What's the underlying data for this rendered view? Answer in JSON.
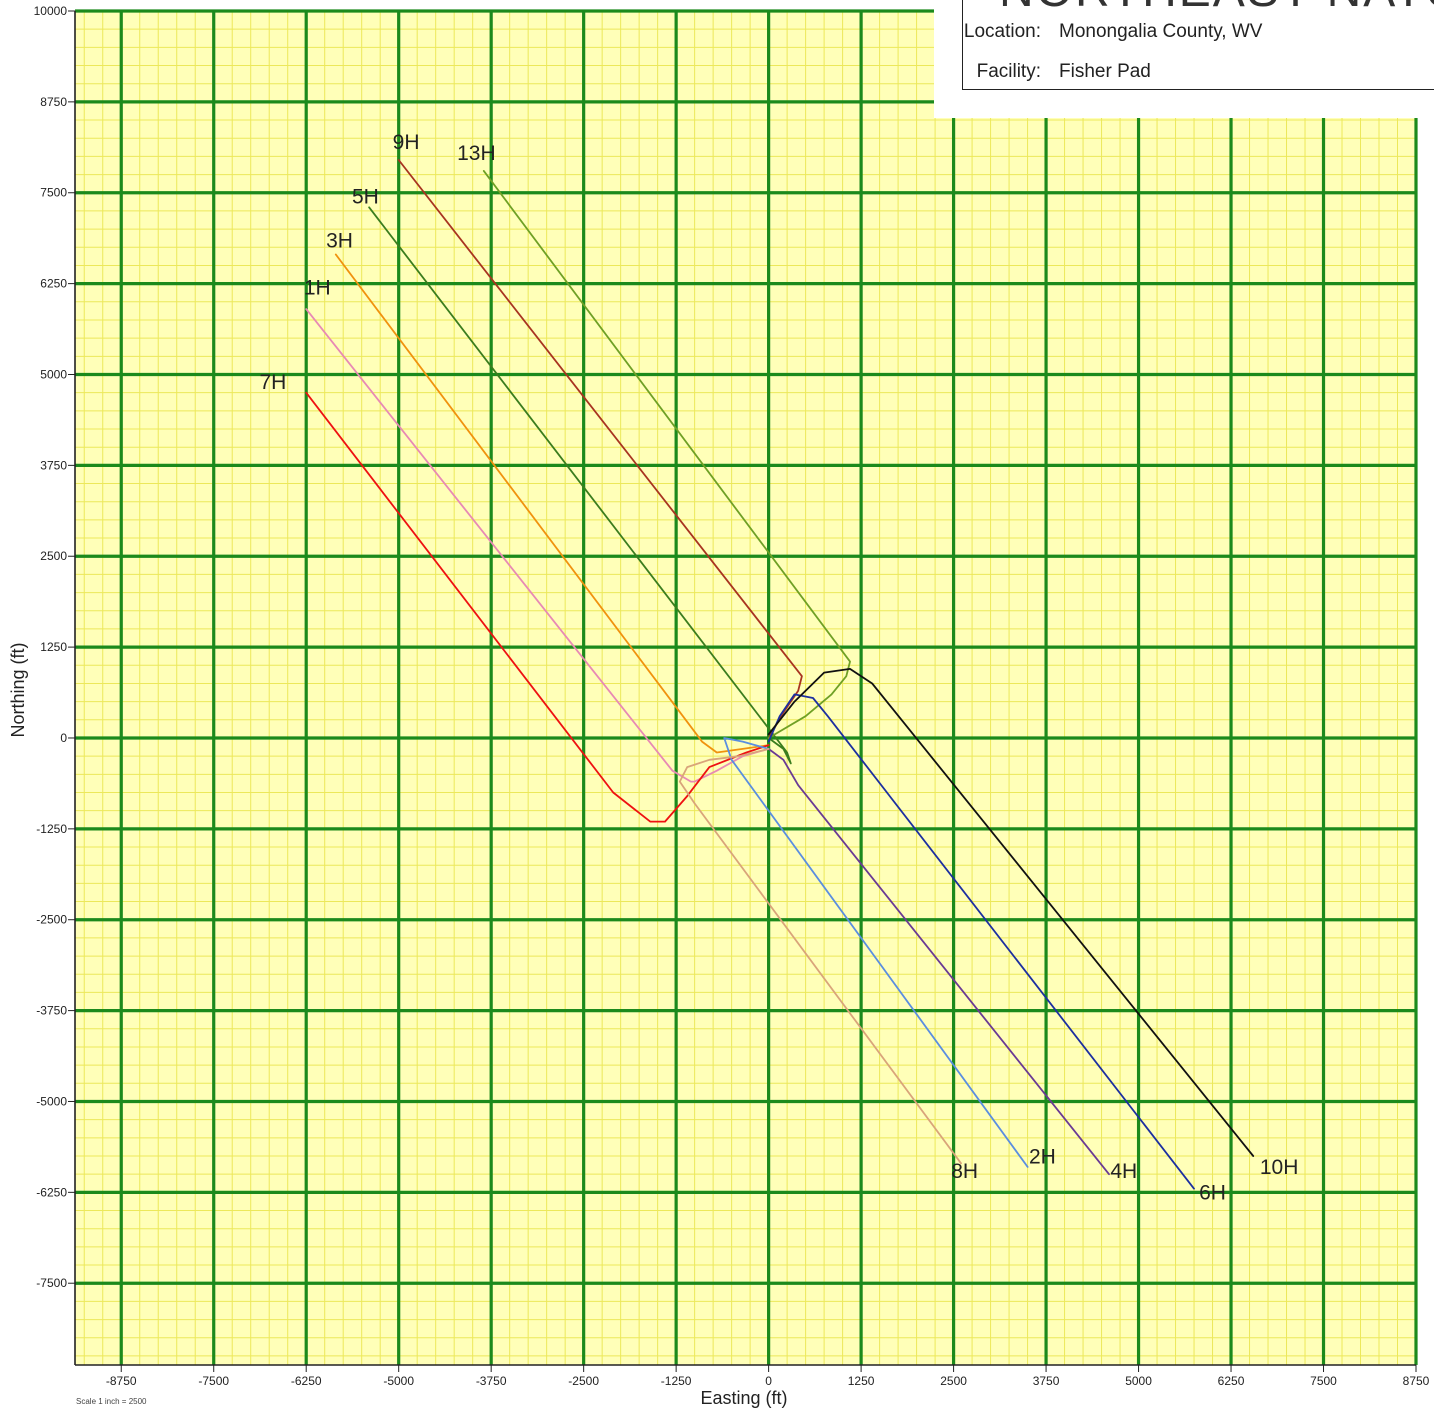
{
  "header": {
    "title": "NORTHEAST NATU",
    "location_label": "Location:",
    "location_value": "Monongalia County, WV",
    "facility_label": "Facility:",
    "facility_value": "Fisher Pad"
  },
  "scale_note": "Scale 1 inch = 2500",
  "chart_data": {
    "type": "line",
    "title": "",
    "xlabel": "Easting (ft)",
    "ylabel": "Northing (ft)",
    "xlim": [
      -9375,
      8750
    ],
    "ylim": [
      -8625,
      10000
    ],
    "xticks": [
      -8750,
      -7500,
      -6250,
      -5000,
      -3750,
      -2500,
      -1250,
      0,
      1250,
      2500,
      3750,
      5000,
      6250,
      7500,
      8750
    ],
    "yticks": [
      10000,
      8750,
      7500,
      6250,
      5000,
      3750,
      2500,
      1250,
      0,
      -1250,
      -2500,
      -3750,
      -5000,
      -6250,
      -7500
    ],
    "grid": true,
    "legend": "none",
    "series": [
      {
        "name": "1H",
        "color": "#e889b4",
        "label_pos": [
          -6100,
          6100
        ],
        "x": [
          0,
          -350,
          -700,
          -1000,
          -1050,
          -1300,
          -6250
        ],
        "y": [
          -150,
          -250,
          -450,
          -600,
          -600,
          -450,
          5900
        ]
      },
      {
        "name": "3H",
        "color": "#f0920e",
        "label_pos": [
          -5800,
          6750
        ],
        "x": [
          0,
          -350,
          -700,
          -900,
          -5850
        ],
        "y": [
          -100,
          -150,
          -200,
          -50,
          6650
        ]
      },
      {
        "name": "5H",
        "color": "#3b7d1e",
        "label_pos": [
          -5450,
          7350
        ],
        "x": [
          0,
          200,
          300,
          250,
          -5400
        ],
        "y": [
          0,
          -150,
          -350,
          -200,
          7300
        ]
      },
      {
        "name": "7H",
        "color": "#ee1111",
        "label_pos": [
          -6700,
          4800
        ],
        "x": [
          0,
          -300,
          -800,
          -1100,
          -1400,
          -1600,
          -2100,
          -6250
        ],
        "y": [
          -100,
          -200,
          -400,
          -800,
          -1150,
          -1150,
          -750,
          4750
        ]
      },
      {
        "name": "9H",
        "color": "#a83420",
        "label_pos": [
          -4900,
          8100
        ],
        "x": [
          0,
          200,
          400,
          450,
          -5000
        ],
        "y": [
          0,
          350,
          650,
          850,
          7950
        ]
      },
      {
        "name": "13H",
        "color": "#6fa025",
        "label_pos": [
          -3950,
          7950
        ],
        "x": [
          0,
          500,
          850,
          1050,
          1100,
          -3850
        ],
        "y": [
          0,
          300,
          600,
          850,
          1050,
          7800
        ]
      },
      {
        "name": "2H",
        "color": "#5a8ee0",
        "label_pos": [
          3700,
          -5850
        ],
        "x": [
          0,
          -350,
          -600,
          -500,
          3500
        ],
        "y": [
          -150,
          -50,
          0,
          -300,
          -5900
        ]
      },
      {
        "name": "4H",
        "color": "#6a3a94",
        "label_pos": [
          4800,
          -6050
        ],
        "x": [
          0,
          200,
          400,
          4600
        ],
        "y": [
          -150,
          -300,
          -650,
          -6000
        ]
      },
      {
        "name": "6H",
        "color": "#1c2fa0",
        "label_pos": [
          6000,
          -6350
        ],
        "x": [
          0,
          150,
          350,
          600,
          800,
          5750
        ],
        "y": [
          -50,
          300,
          600,
          550,
          300,
          -6200
        ]
      },
      {
        "name": "8H",
        "color": "#d9a47a",
        "label_pos": [
          2650,
          -6050
        ],
        "x": [
          0,
          -400,
          -800,
          -1100,
          -1200,
          -1000,
          2600
        ],
        "y": [
          -150,
          -250,
          -300,
          -400,
          -600,
          -900,
          -5850
        ]
      },
      {
        "name": "10H",
        "color": "#111111",
        "label_pos": [
          6900,
          -6000
        ],
        "x": [
          0,
          350,
          750,
          1100,
          1400,
          6550
        ],
        "y": [
          50,
          500,
          900,
          950,
          750,
          -5750
        ]
      }
    ]
  }
}
